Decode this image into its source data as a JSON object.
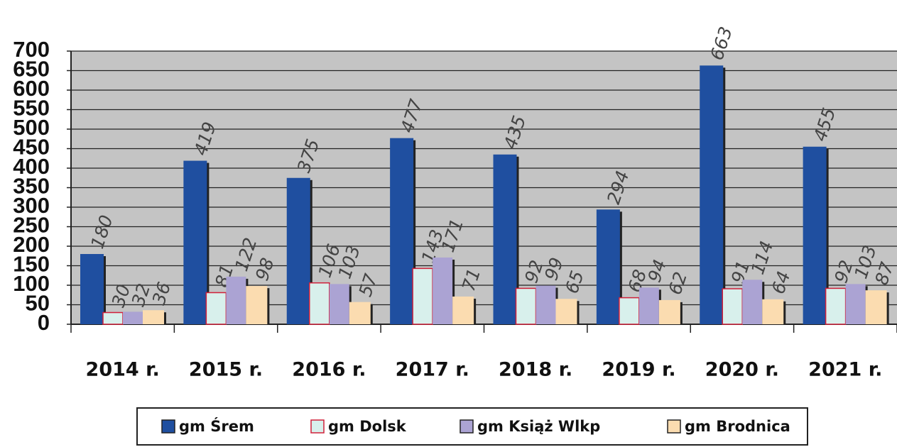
{
  "chart_data": {
    "type": "bar",
    "categories": [
      "2014 r.",
      "2015 r.",
      "2016 r.",
      "2017 r.",
      "2018 r.",
      "2019 r.",
      "2020 r.",
      "2021 r."
    ],
    "series": [
      {
        "name": "gm Śrem",
        "color": "#1f4fa0",
        "values": [
          180,
          419,
          375,
          477,
          435,
          294,
          663,
          455
        ]
      },
      {
        "name": "gm Dolsk",
        "color": "#d8f0ec",
        "values": [
          30,
          81,
          106,
          143,
          92,
          68,
          91,
          92
        ]
      },
      {
        "name": "gm Książ Wlkp",
        "color": "#aba3d3",
        "values": [
          32,
          122,
          103,
          171,
          99,
          94,
          114,
          103
        ]
      },
      {
        "name": "gm Brodnica",
        "color": "#fbdcb0",
        "values": [
          36,
          98,
          57,
          71,
          65,
          62,
          64,
          87
        ]
      }
    ],
    "ylim": [
      0,
      700
    ],
    "yticks": [
      0,
      50,
      100,
      150,
      200,
      250,
      300,
      350,
      400,
      450,
      500,
      550,
      600,
      650,
      700
    ],
    "grid": true,
    "legend": "bottom"
  }
}
